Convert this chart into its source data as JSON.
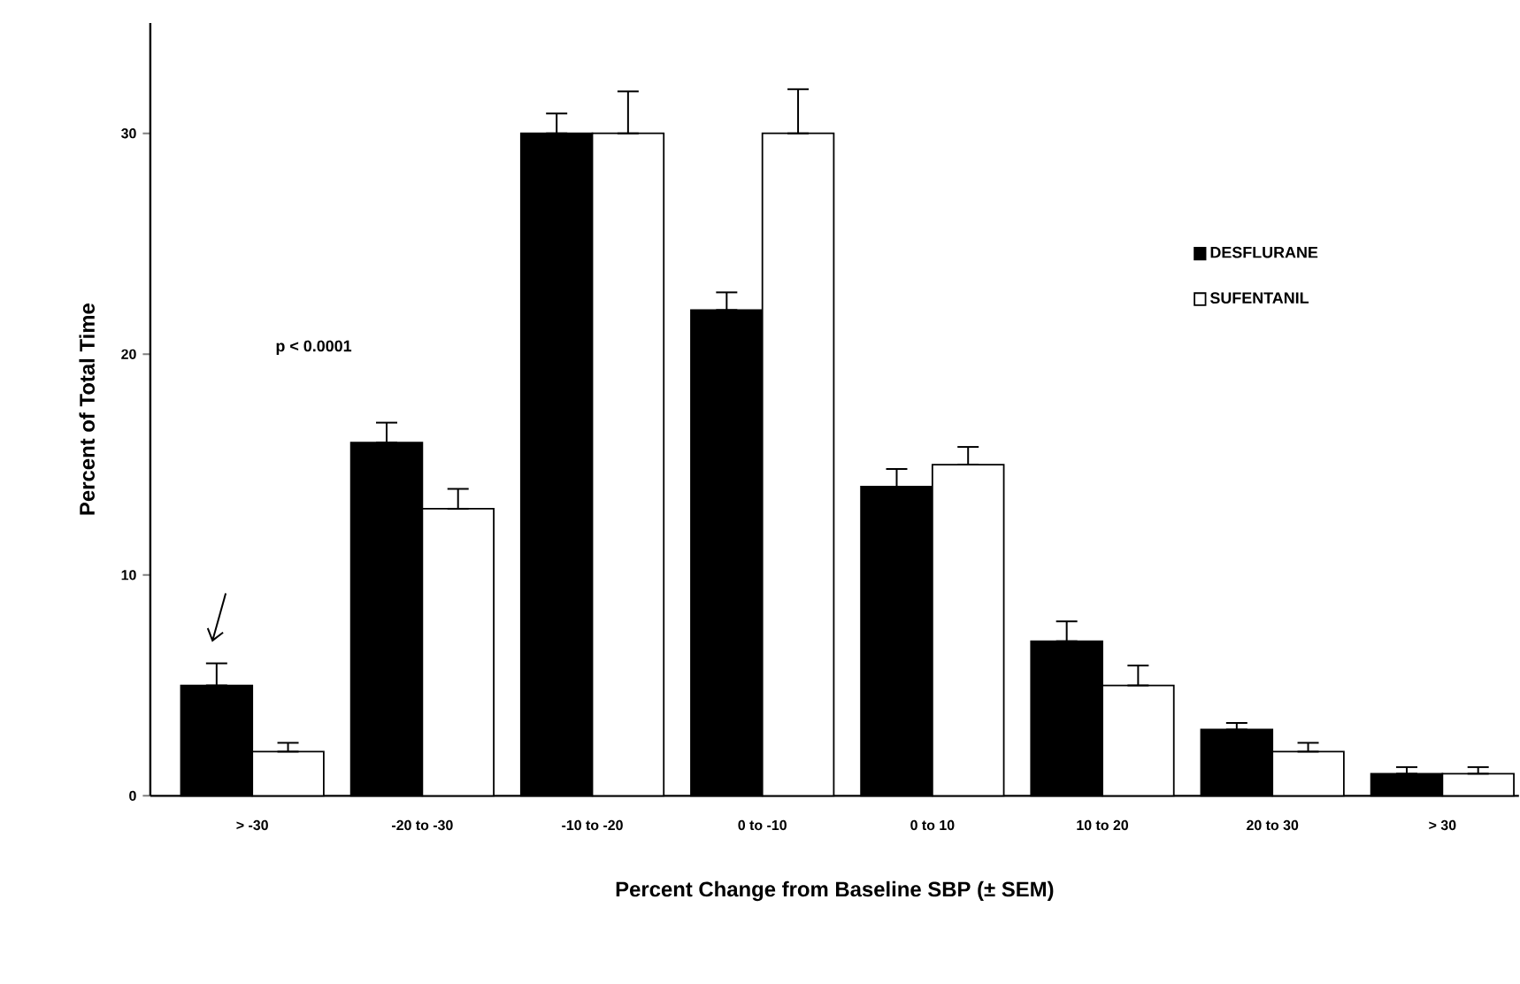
{
  "chart_data": {
    "type": "bar",
    "xlabel": "Percent Change from Baseline SBP (± SEM)",
    "ylabel": "Percent of Total Time",
    "categories": [
      "> -30",
      "-20 to -30",
      "-10 to -20",
      "0 to -10",
      "0 to 10",
      "10 to 20",
      "20 to 30",
      "> 30"
    ],
    "series": [
      {
        "name": "DESFLURANE",
        "color": "#000000",
        "values": [
          5,
          16,
          30,
          22,
          14,
          7,
          3,
          1
        ],
        "errors": [
          [
            5,
            6
          ],
          [
            16,
            16.9
          ],
          [
            30,
            30.9
          ],
          [
            22,
            22.8
          ],
          [
            14,
            14.8
          ],
          [
            7,
            7.9
          ],
          [
            3,
            3.3
          ],
          [
            1,
            1.3
          ]
        ]
      },
      {
        "name": "SUFENTANIL",
        "color": "#ffffff",
        "values": [
          2,
          13,
          30,
          30,
          15,
          5,
          2,
          1
        ],
        "errors": [
          [
            2,
            2.4
          ],
          [
            13,
            13.9
          ],
          [
            30,
            31.9
          ],
          [
            30,
            32
          ],
          [
            15,
            15.8
          ],
          [
            5,
            5.9
          ],
          [
            2,
            2.4
          ],
          [
            1,
            1.3
          ]
        ]
      }
    ],
    "ylim": [
      0,
      35
    ],
    "yticks": [
      0,
      10,
      20,
      30
    ],
    "legend": "top right",
    "grid": false,
    "annotations": [
      "p < 0.0001"
    ]
  }
}
